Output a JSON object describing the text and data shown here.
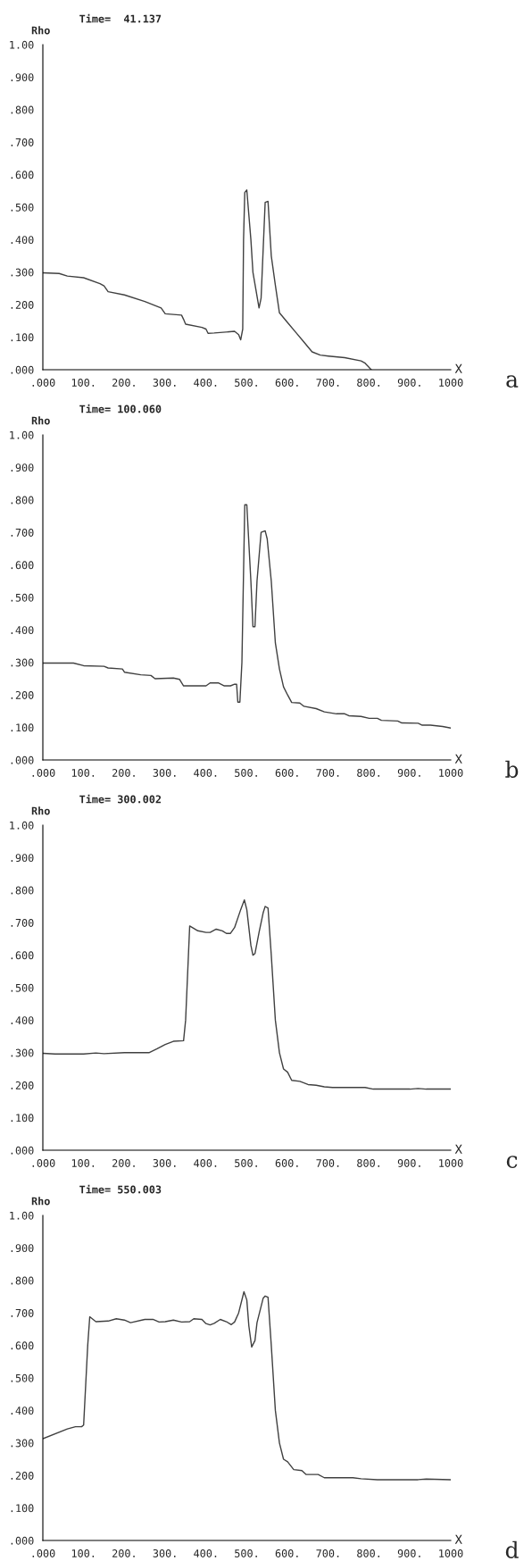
{
  "chart_data": [
    {
      "type": "line",
      "title": "Time=  41.137",
      "xlabel": "X",
      "ylabel": "Rho",
      "annotations": [
        "a"
      ],
      "xlim": [
        0,
        1000
      ],
      "ylim": [
        0,
        1
      ],
      "xticks": [
        {
          "value": 0,
          "label": ".000"
        },
        {
          "value": 100,
          "label": "100."
        },
        {
          "value": 200,
          "label": "200."
        },
        {
          "value": 300,
          "label": "300."
        },
        {
          "value": 400,
          "label": "400."
        },
        {
          "value": 500,
          "label": "500."
        },
        {
          "value": 600,
          "label": "600."
        },
        {
          "value": 700,
          "label": "700."
        },
        {
          "value": 800,
          "label": "800."
        },
        {
          "value": 900,
          "label": "900."
        },
        {
          "value": 1000,
          "label": "1000"
        }
      ],
      "yticks": [
        {
          "value": 0,
          "label": ".000"
        },
        {
          "value": 0.1,
          "label": ".100"
        },
        {
          "value": 0.2,
          "label": ".200"
        },
        {
          "value": 0.3,
          "label": ".300"
        },
        {
          "value": 0.4,
          "label": ".400"
        },
        {
          "value": 0.5,
          "label": ".500"
        },
        {
          "value": 0.6,
          "label": ".600"
        },
        {
          "value": 0.7,
          "label": ".700"
        },
        {
          "value": 0.8,
          "label": ".800"
        },
        {
          "value": 0.9,
          "label": ".900"
        },
        {
          "value": 1.0,
          "label": "1.00"
        }
      ],
      "series": [
        {
          "color": "#404040",
          "x": [
            0,
            40,
            60,
            100,
            140,
            150,
            160,
            200,
            250,
            290,
            300,
            340,
            345,
            350,
            390,
            400,
            405,
            420,
            470,
            480,
            485,
            490,
            492,
            495,
            500,
            510,
            515,
            530,
            535,
            545,
            552,
            560,
            570,
            580,
            600,
            620,
            640,
            660,
            680,
            700,
            740,
            780,
            790,
            805
          ],
          "values": [
            0.298,
            0.296,
            0.288,
            0.283,
            0.265,
            0.258,
            0.24,
            0.23,
            0.21,
            0.19,
            0.172,
            0.168,
            0.155,
            0.14,
            0.13,
            0.125,
            0.112,
            0.113,
            0.118,
            0.108,
            0.092,
            0.125,
            0.4,
            0.545,
            0.553,
            0.4,
            0.3,
            0.19,
            0.22,
            0.515,
            0.518,
            0.35,
            0.26,
            0.175,
            0.145,
            0.115,
            0.085,
            0.055,
            0.045,
            0.042,
            0.037,
            0.027,
            0.02,
            0.0
          ]
        }
      ]
    },
    {
      "type": "line",
      "title": "Time= 100.060",
      "xlabel": "X",
      "ylabel": "Rho",
      "annotations": [
        "b"
      ],
      "xlim": [
        0,
        1000
      ],
      "ylim": [
        0,
        1
      ],
      "xticks": [
        {
          "value": 0,
          "label": ".000"
        },
        {
          "value": 100,
          "label": "100."
        },
        {
          "value": 200,
          "label": "200."
        },
        {
          "value": 300,
          "label": "300."
        },
        {
          "value": 400,
          "label": "400."
        },
        {
          "value": 500,
          "label": "500."
        },
        {
          "value": 600,
          "label": "600."
        },
        {
          "value": 700,
          "label": "700."
        },
        {
          "value": 800,
          "label": "800."
        },
        {
          "value": 900,
          "label": "900."
        },
        {
          "value": 1000,
          "label": "1000"
        }
      ],
      "yticks": [
        {
          "value": 0,
          "label": ".000"
        },
        {
          "value": 0.1,
          "label": ".100"
        },
        {
          "value": 0.2,
          "label": ".200"
        },
        {
          "value": 0.3,
          "label": ".300"
        },
        {
          "value": 0.4,
          "label": ".400"
        },
        {
          "value": 0.5,
          "label": ".500"
        },
        {
          "value": 0.6,
          "label": ".600"
        },
        {
          "value": 0.7,
          "label": ".700"
        },
        {
          "value": 0.8,
          "label": ".800"
        },
        {
          "value": 0.9,
          "label": ".900"
        },
        {
          "value": 1.0,
          "label": "1.00"
        }
      ],
      "series": [
        {
          "color": "#404040",
          "x": [
            0,
            75,
            100,
            150,
            160,
            195,
            200,
            240,
            265,
            275,
            320,
            335,
            345,
            400,
            410,
            430,
            445,
            460,
            470,
            475,
            478,
            483,
            488,
            495,
            500,
            510,
            515,
            520,
            525,
            535,
            545,
            550,
            560,
            570,
            580,
            590,
            600,
            610,
            630,
            640,
            670,
            690,
            700,
            720,
            740,
            750,
            780,
            800,
            820,
            830,
            870,
            880,
            920,
            930,
            950,
            980,
            1000
          ],
          "values": [
            0.298,
            0.298,
            0.29,
            0.288,
            0.283,
            0.28,
            0.27,
            0.262,
            0.26,
            0.25,
            0.252,
            0.248,
            0.228,
            0.228,
            0.237,
            0.237,
            0.228,
            0.228,
            0.233,
            0.233,
            0.178,
            0.178,
            0.3,
            0.785,
            0.785,
            0.55,
            0.41,
            0.41,
            0.55,
            0.7,
            0.705,
            0.68,
            0.55,
            0.36,
            0.28,
            0.225,
            0.2,
            0.177,
            0.175,
            0.165,
            0.158,
            0.148,
            0.146,
            0.142,
            0.142,
            0.136,
            0.134,
            0.128,
            0.128,
            0.122,
            0.12,
            0.114,
            0.113,
            0.107,
            0.107,
            0.103,
            0.098
          ]
        }
      ]
    },
    {
      "type": "line",
      "title": "Time= 300.002",
      "xlabel": "X",
      "ylabel": "Rho",
      "annotations": [
        "c"
      ],
      "xlim": [
        0,
        1000
      ],
      "ylim": [
        0,
        1
      ],
      "xticks": [
        {
          "value": 0,
          "label": ".000"
        },
        {
          "value": 100,
          "label": "100."
        },
        {
          "value": 200,
          "label": "200."
        },
        {
          "value": 300,
          "label": "300."
        },
        {
          "value": 400,
          "label": "400."
        },
        {
          "value": 500,
          "label": "500."
        },
        {
          "value": 600,
          "label": "600."
        },
        {
          "value": 700,
          "label": "700."
        },
        {
          "value": 800,
          "label": "800."
        },
        {
          "value": 900,
          "label": "900."
        },
        {
          "value": 1000,
          "label": "1000"
        }
      ],
      "yticks": [
        {
          "value": 0,
          "label": ".000"
        },
        {
          "value": 0.1,
          "label": ".100"
        },
        {
          "value": 0.2,
          "label": ".200"
        },
        {
          "value": 0.3,
          "label": ".300"
        },
        {
          "value": 0.4,
          "label": ".400"
        },
        {
          "value": 0.5,
          "label": ".500"
        },
        {
          "value": 0.6,
          "label": ".600"
        },
        {
          "value": 0.7,
          "label": ".700"
        },
        {
          "value": 0.8,
          "label": ".800"
        },
        {
          "value": 0.9,
          "label": ".900"
        },
        {
          "value": 1.0,
          "label": "1.00"
        }
      ],
      "series": [
        {
          "color": "#404040",
          "x": [
            0,
            30,
            100,
            130,
            150,
            200,
            260,
            280,
            300,
            320,
            345,
            350,
            360,
            380,
            400,
            410,
            425,
            440,
            450,
            460,
            470,
            485,
            494,
            500,
            510,
            515,
            520,
            530,
            540,
            545,
            552,
            560,
            570,
            580,
            590,
            600,
            610,
            630,
            650,
            670,
            690,
            710,
            790,
            810,
            900,
            920,
            940,
            1000
          ],
          "values": [
            0.298,
            0.296,
            0.296,
            0.299,
            0.297,
            0.3,
            0.3,
            0.312,
            0.325,
            0.335,
            0.337,
            0.4,
            0.69,
            0.675,
            0.67,
            0.67,
            0.68,
            0.675,
            0.667,
            0.667,
            0.685,
            0.74,
            0.77,
            0.74,
            0.63,
            0.6,
            0.605,
            0.67,
            0.73,
            0.75,
            0.745,
            0.6,
            0.4,
            0.3,
            0.25,
            0.24,
            0.215,
            0.212,
            0.202,
            0.2,
            0.195,
            0.193,
            0.193,
            0.188,
            0.188,
            0.19,
            0.188,
            0.188
          ]
        }
      ]
    },
    {
      "type": "line",
      "title": "Time= 550.003",
      "xlabel": "X",
      "ylabel": "Rho",
      "annotations": [
        "d"
      ],
      "xlim": [
        0,
        1000
      ],
      "ylim": [
        0,
        1
      ],
      "xticks": [
        {
          "value": 0,
          "label": ".000"
        },
        {
          "value": 100,
          "label": "100."
        },
        {
          "value": 200,
          "label": "200."
        },
        {
          "value": 300,
          "label": "300."
        },
        {
          "value": 400,
          "label": "400."
        },
        {
          "value": 500,
          "label": "500."
        },
        {
          "value": 600,
          "label": "600."
        },
        {
          "value": 700,
          "label": "700."
        },
        {
          "value": 800,
          "label": "800."
        },
        {
          "value": 900,
          "label": "900."
        },
        {
          "value": 1000,
          "label": "1000"
        }
      ],
      "yticks": [
        {
          "value": 0,
          "label": ".000"
        },
        {
          "value": 0.1,
          "label": ".100"
        },
        {
          "value": 0.2,
          "label": ".200"
        },
        {
          "value": 0.3,
          "label": ".300"
        },
        {
          "value": 0.4,
          "label": ".400"
        },
        {
          "value": 0.5,
          "label": ".500"
        },
        {
          "value": 0.6,
          "label": ".600"
        },
        {
          "value": 0.7,
          "label": ".700"
        },
        {
          "value": 0.8,
          "label": ".800"
        },
        {
          "value": 0.9,
          "label": ".900"
        },
        {
          "value": 1.0,
          "label": "1.00"
        }
      ],
      "series": [
        {
          "color": "#404040",
          "x": [
            0,
            60,
            80,
            95,
            100,
            110,
            115,
            130,
            160,
            180,
            200,
            215,
            250,
            270,
            285,
            300,
            320,
            340,
            360,
            370,
            390,
            400,
            410,
            420,
            435,
            450,
            462,
            470,
            480,
            493,
            500,
            505,
            512,
            520,
            525,
            540,
            545,
            552,
            560,
            570,
            580,
            590,
            600,
            615,
            635,
            645,
            675,
            690,
            760,
            780,
            820,
            920,
            940,
            1000
          ],
          "values": [
            0.313,
            0.343,
            0.35,
            0.35,
            0.355,
            0.6,
            0.688,
            0.673,
            0.675,
            0.682,
            0.678,
            0.67,
            0.68,
            0.68,
            0.672,
            0.673,
            0.678,
            0.672,
            0.673,
            0.682,
            0.68,
            0.667,
            0.663,
            0.668,
            0.68,
            0.673,
            0.664,
            0.672,
            0.7,
            0.765,
            0.74,
            0.66,
            0.595,
            0.615,
            0.67,
            0.745,
            0.752,
            0.748,
            0.6,
            0.4,
            0.3,
            0.25,
            0.242,
            0.218,
            0.215,
            0.203,
            0.203,
            0.193,
            0.193,
            0.19,
            0.187,
            0.187,
            0.189,
            0.187
          ]
        }
      ]
    }
  ]
}
